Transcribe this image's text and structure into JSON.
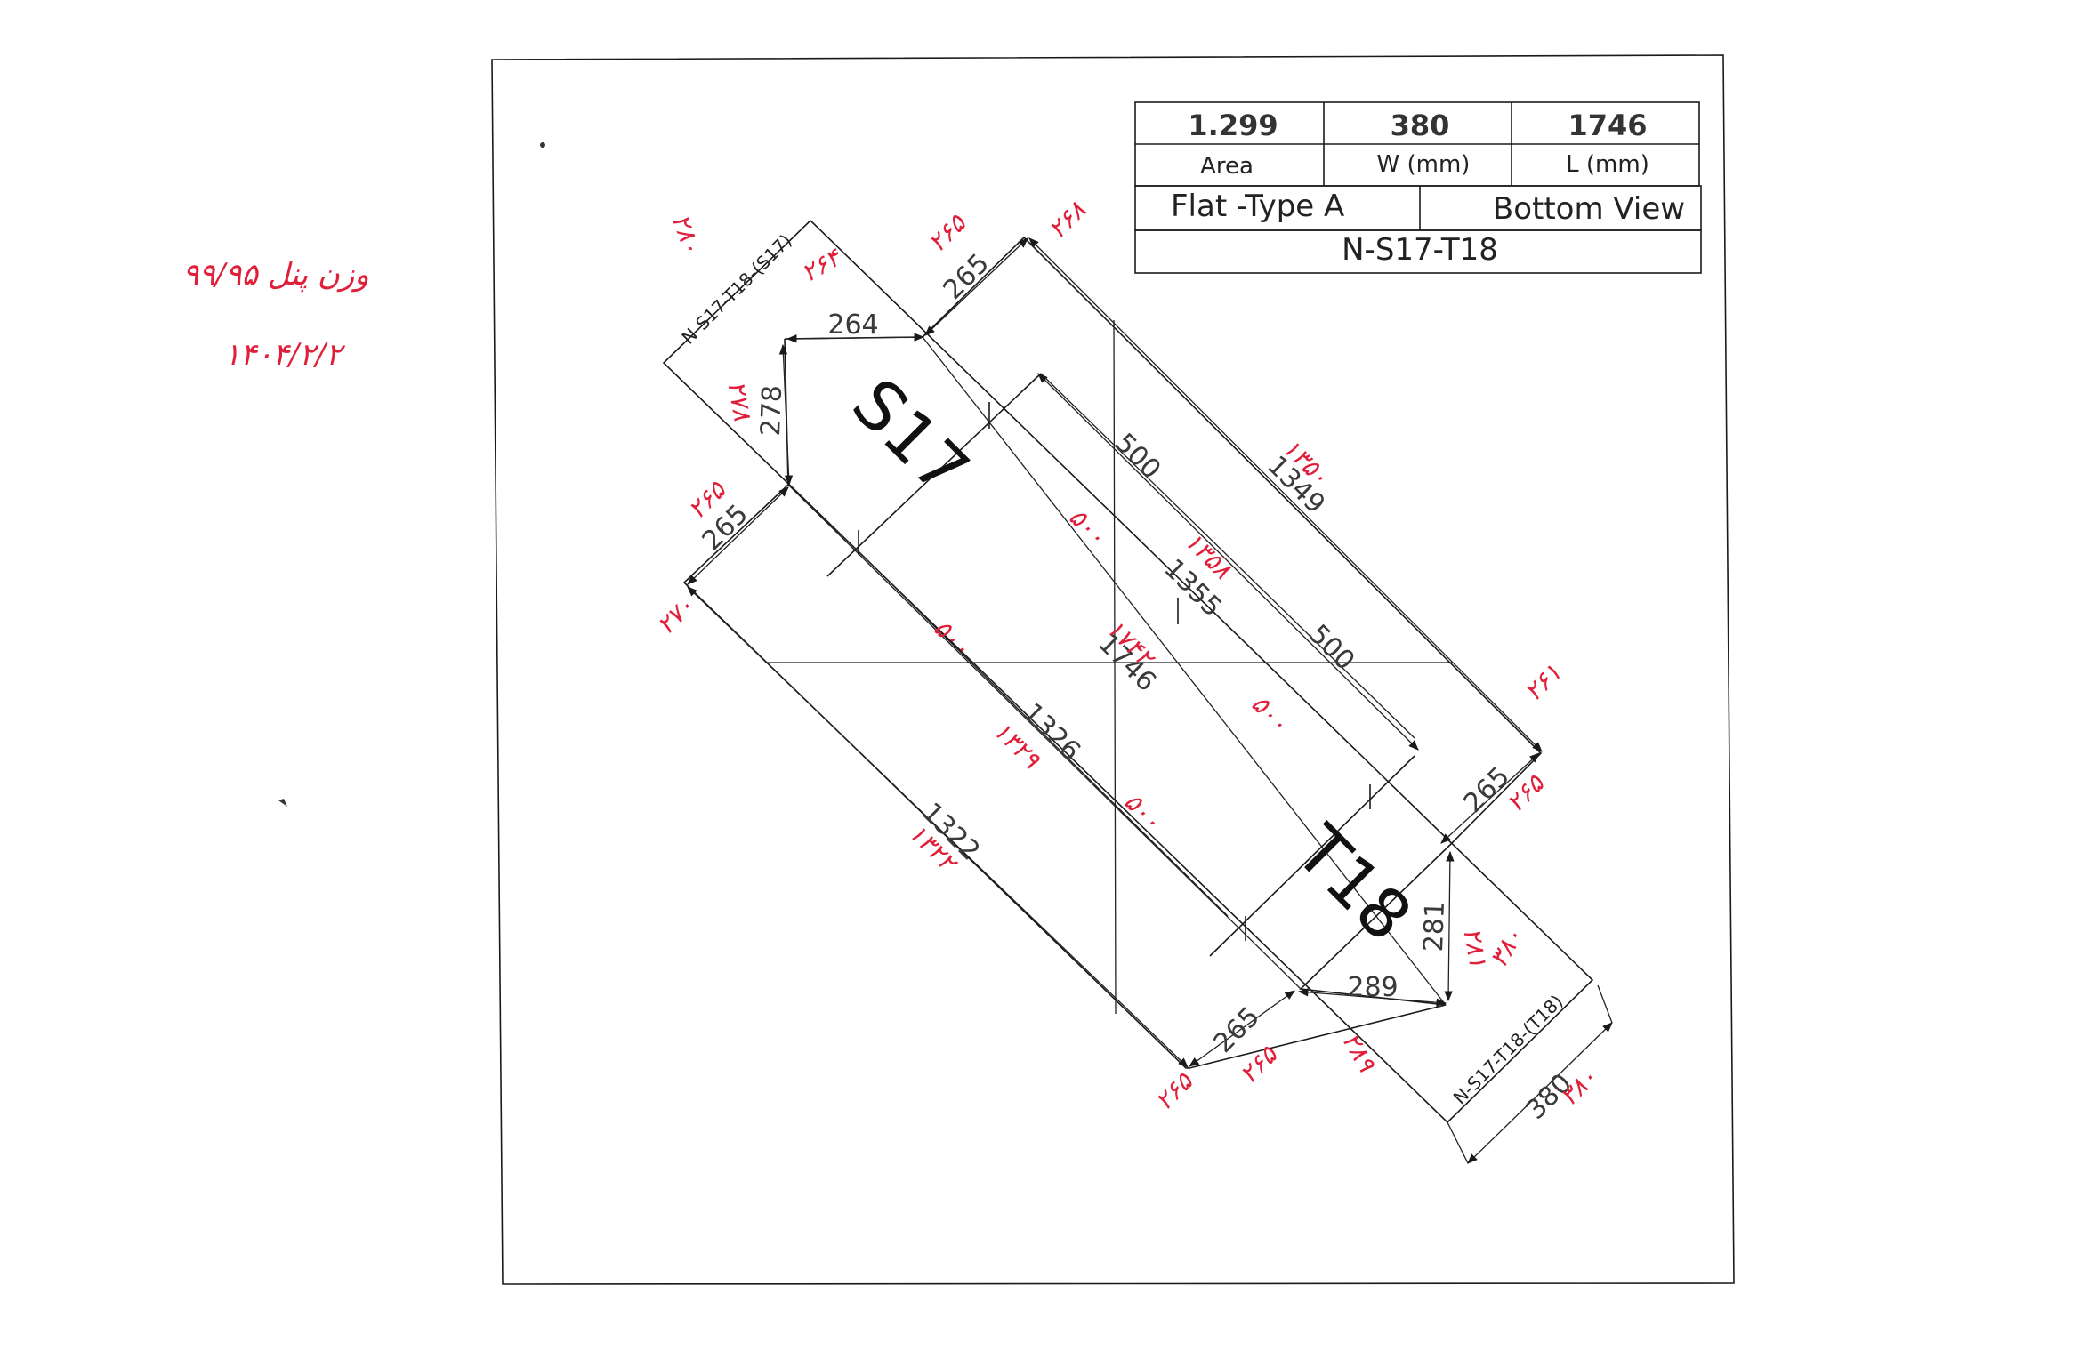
{
  "title_block": {
    "area_value": "1.299",
    "width_value": "380",
    "length_value": "1746",
    "area_label": "Area",
    "width_label": "W (mm)",
    "length_label": "L (mm)",
    "panel_type": "Flat -Type A",
    "view": "Bottom View",
    "panel_id": "N-S17-T18"
  },
  "drawing": {
    "s_label": "S17",
    "t_label": "T18",
    "edge_label_top": "N-S17-T18-(S17)",
    "edge_label_bottom": "N-S17-T18-(T18)",
    "dimensions": {
      "top_edge": "264",
      "top_side": "278",
      "top_chamfer_upper": "265",
      "top_chamfer_lower": "265",
      "long_right": "1349",
      "long_left": "1322",
      "center_a": "1355",
      "center_b": "1326",
      "diagonal": "1746",
      "offset_upper": "500",
      "offset_lower": "500",
      "bottom_chamfer_upper": "265",
      "bottom_chamfer_lower": "265",
      "bottom_side": "281",
      "bottom_edge": "289",
      "width": "380"
    }
  },
  "handwritten": {
    "weight_note": "وزن پنل ۹۹/۹۵",
    "date": "۱۴۰۴/۲/۲",
    "marks": [
      "۱۳۵۰",
      "۱۳۲۲",
      "۱۳۲۹",
      "۱۳۵۸",
      "۱۷۴۲",
      "۵۰۰",
      "۵۰۰",
      "۵۰۰",
      "۵۰۰",
      "۲۷۸",
      "۲۸۰",
      "۳۸۰",
      "۳۸۰",
      "۲۶۴",
      "۲۸۹",
      "۲۸۱",
      "۲۶۵",
      "۲۶۵",
      "۲۶۵",
      "۲۶۵",
      "۲۶۸",
      "۲۷۰",
      "۲۶۱",
      "۲۶۵"
    ]
  }
}
